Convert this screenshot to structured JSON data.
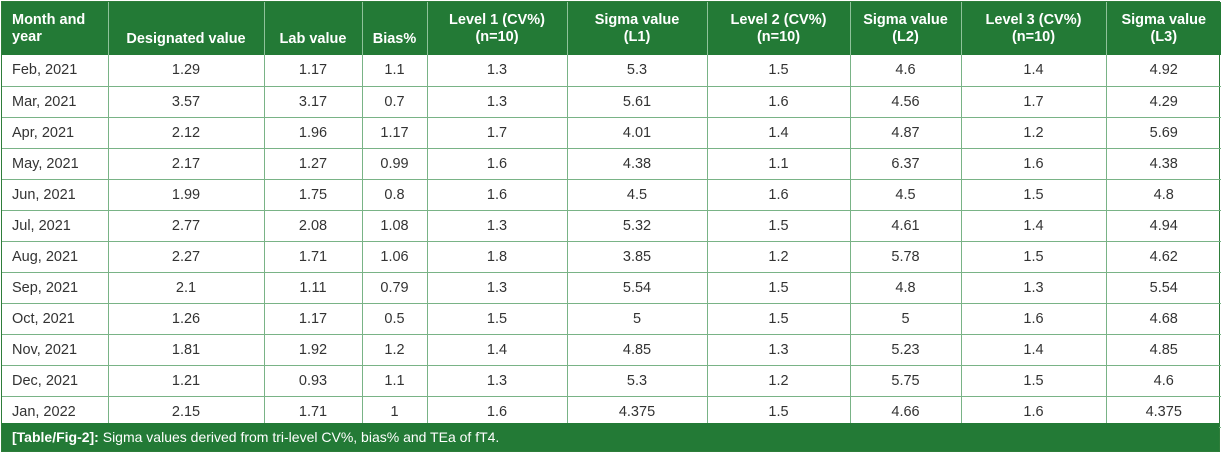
{
  "table": {
    "headers": [
      "Month and\nyear",
      "Designated value",
      "Lab value",
      "Bias%",
      "Level 1 (CV%)\n(n=10)",
      "Sigma value\n(L1)",
      "Level 2 (CV%)\n(n=10)",
      "Sigma value\n(L2)",
      "Level 3 (CV%)\n(n=10)",
      "Sigma value\n(L3)"
    ],
    "rows": [
      [
        "Feb, 2021",
        "1.29",
        "1.17",
        "1.1",
        "1.3",
        "5.3",
        "1.5",
        "4.6",
        "1.4",
        "4.92"
      ],
      [
        "Mar, 2021",
        "3.57",
        "3.17",
        "0.7",
        "1.3",
        "5.61",
        "1.6",
        "4.56",
        "1.7",
        "4.29"
      ],
      [
        "Apr, 2021",
        "2.12",
        "1.96",
        "1.17",
        "1.7",
        "4.01",
        "1.4",
        "4.87",
        "1.2",
        "5.69"
      ],
      [
        "May, 2021",
        "2.17",
        "1.27",
        "0.99",
        "1.6",
        "4.38",
        "1.1",
        "6.37",
        "1.6",
        "4.38"
      ],
      [
        "Jun, 2021",
        "1.99",
        "1.75",
        "0.8",
        "1.6",
        "4.5",
        "1.6",
        "4.5",
        "1.5",
        "4.8"
      ],
      [
        "Jul, 2021",
        "2.77",
        "2.08",
        "1.08",
        "1.3",
        "5.32",
        "1.5",
        "4.61",
        "1.4",
        "4.94"
      ],
      [
        "Aug, 2021",
        "2.27",
        "1.71",
        "1.06",
        "1.8",
        "3.85",
        "1.2",
        "5.78",
        "1.5",
        "4.62"
      ],
      [
        "Sep, 2021",
        "2.1",
        "1.11",
        "0.79",
        "1.3",
        "5.54",
        "1.5",
        "4.8",
        "1.3",
        "5.54"
      ],
      [
        "Oct, 2021",
        "1.26",
        "1.17",
        "0.5",
        "1.5",
        "5",
        "1.5",
        "5",
        "1.6",
        "4.68"
      ],
      [
        "Nov, 2021",
        "1.81",
        "1.92",
        "1.2",
        "1.4",
        "4.85",
        "1.3",
        "5.23",
        "1.4",
        "4.85"
      ],
      [
        "Dec, 2021",
        "1.21",
        "0.93",
        "1.1",
        "1.3",
        "5.3",
        "1.2",
        "5.75",
        "1.5",
        "4.6"
      ],
      [
        "Jan, 2022",
        "2.15",
        "1.71",
        "1",
        "1.6",
        "4.375",
        "1.5",
        "4.66",
        "1.6",
        "4.375"
      ]
    ]
  },
  "caption": {
    "tag": "[Table/Fig-2]:",
    "text": " Sigma values derived from tri-level CV%, bias% and TEa of fT4."
  },
  "colors": {
    "header_bg": "#237a36",
    "grid": "#79b386"
  }
}
